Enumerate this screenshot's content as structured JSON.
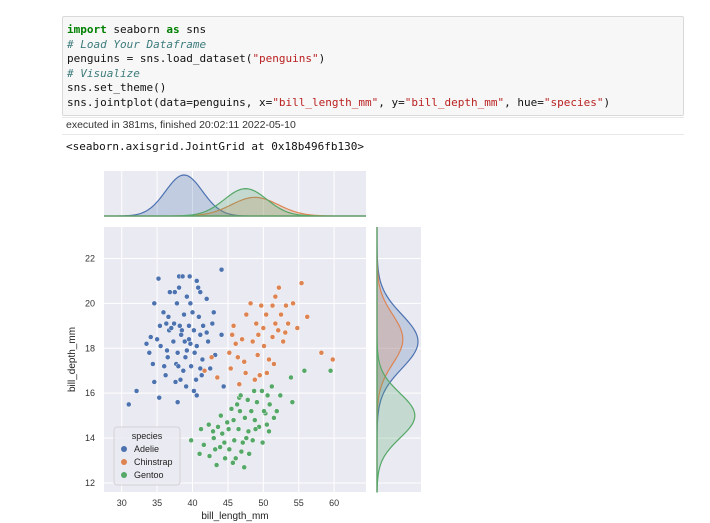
{
  "cell": {
    "lines": [
      {
        "kw": "import",
        "rest_a": " seaborn ",
        "kw2": "as",
        "rest_b": " sns"
      },
      {
        "comment": "# Load Your Dataframe"
      },
      {
        "pre": "penguins = sns.load_dataset(",
        "str": "\"penguins\"",
        "post": ")"
      },
      {
        "comment": "# Visualize"
      },
      {
        "plain": "sns.set_theme()"
      },
      {
        "pre": "sns.jointplot(data=penguins, x=",
        "str1": "\"bill_length_mm\"",
        "mid": ", y=",
        "str2": "\"bill_depth_mm\"",
        "mid2": ", hue=",
        "str3": "\"species\"",
        "post": ")"
      }
    ],
    "exec_info": "executed in 381ms, finished 20:02:11 2022-05-10",
    "output_repr": "<seaborn.axisgrid.JointGrid at 0x18b496fb130>"
  },
  "chart_data": {
    "type": "scatter",
    "xlabel": "bill_length_mm",
    "ylabel": "bill_depth_mm",
    "xlim": [
      27.5,
      64.5
    ],
    "ylim": [
      11.6,
      23.4
    ],
    "xticks": [
      30,
      35,
      40,
      45,
      50,
      55,
      60
    ],
    "yticks": [
      12,
      14,
      16,
      18,
      20,
      22
    ],
    "legend_title": "species",
    "legend_position": "lower-left",
    "grid": true,
    "series": [
      {
        "name": "Adelie",
        "color": "#4c72b0",
        "kde_x": {
          "mean": 38.8,
          "sd": 2.6
        },
        "kde_y": {
          "mean": 18.3,
          "sd": 1.2
        },
        "points": [
          [
            38.1,
            21.2
          ],
          [
            35.2,
            21.1
          ],
          [
            38.6,
            21.2
          ],
          [
            39.6,
            21.2
          ],
          [
            40.6,
            21.0
          ],
          [
            44.1,
            21.5
          ],
          [
            41.1,
            20.5
          ],
          [
            37.5,
            20.5
          ],
          [
            38.1,
            20.7
          ],
          [
            36.8,
            20.5
          ],
          [
            39.2,
            20.3
          ],
          [
            39.7,
            20.0
          ],
          [
            40.8,
            20.7
          ],
          [
            42.0,
            20.2
          ],
          [
            37.8,
            20.0
          ],
          [
            34.6,
            20.0
          ],
          [
            35.9,
            19.6
          ],
          [
            38.8,
            19.5
          ],
          [
            36.6,
            19.4
          ],
          [
            40.9,
            19.4
          ],
          [
            37.4,
            19.1
          ],
          [
            42.8,
            19.1
          ],
          [
            35.4,
            19.0
          ],
          [
            38.2,
            19.0
          ],
          [
            39.5,
            19.0
          ],
          [
            41.5,
            19.0
          ],
          [
            36.7,
            18.8
          ],
          [
            34.1,
            18.5
          ],
          [
            38.4,
            18.6
          ],
          [
            40.2,
            18.8
          ],
          [
            41.1,
            18.6
          ],
          [
            44.1,
            18.6
          ],
          [
            33.5,
            18.2
          ],
          [
            35.5,
            18.1
          ],
          [
            37.3,
            18.3
          ],
          [
            38.9,
            18.3
          ],
          [
            39.7,
            18.2
          ],
          [
            40.6,
            18.1
          ],
          [
            42.2,
            18.3
          ],
          [
            36.4,
            17.9
          ],
          [
            37.9,
            17.8
          ],
          [
            39.0,
            17.6
          ],
          [
            40.3,
            17.8
          ],
          [
            41.4,
            17.5
          ],
          [
            43.2,
            17.7
          ],
          [
            34.4,
            17.3
          ],
          [
            36.0,
            17.2
          ],
          [
            37.7,
            17.3
          ],
          [
            38.7,
            17.0
          ],
          [
            39.8,
            17.2
          ],
          [
            41.1,
            17.1
          ],
          [
            42.5,
            17.1
          ],
          [
            36.2,
            16.8
          ],
          [
            38.3,
            16.6
          ],
          [
            40.5,
            16.6
          ],
          [
            41.3,
            16.8
          ],
          [
            32.1,
            16.1
          ],
          [
            34.6,
            16.5
          ],
          [
            37.6,
            16.5
          ],
          [
            39.1,
            16.3
          ],
          [
            40.2,
            16.1
          ],
          [
            44.4,
            16.3
          ],
          [
            31.0,
            15.5
          ],
          [
            35.3,
            15.8
          ],
          [
            37.9,
            15.6
          ],
          [
            40.6,
            15.9
          ],
          [
            36.5,
            17.6
          ],
          [
            38.5,
            18.8
          ],
          [
            39.2,
            17.9
          ],
          [
            35.0,
            18.4
          ],
          [
            37.0,
            18.9
          ],
          [
            40.0,
            19.6
          ],
          [
            42.0,
            18.7
          ],
          [
            36.3,
            19.1
          ],
          [
            33.9,
            17.8
          ],
          [
            43.0,
            19.6
          ],
          [
            38.0,
            17.2
          ],
          [
            39.5,
            18.4
          ]
        ]
      },
      {
        "name": "Chinstrap",
        "color": "#dd8452",
        "kde_x": {
          "mean": 48.8,
          "sd": 3.3
        },
        "kde_y": {
          "mean": 18.4,
          "sd": 1.1
        },
        "points": [
          [
            52.2,
            20.7
          ],
          [
            55.4,
            20.9
          ],
          [
            51.7,
            20.3
          ],
          [
            48.2,
            20.0
          ],
          [
            49.7,
            19.9
          ],
          [
            51.3,
            19.9
          ],
          [
            53.2,
            19.9
          ],
          [
            54.2,
            20.0
          ],
          [
            47.6,
            19.5
          ],
          [
            50.4,
            19.5
          ],
          [
            52.5,
            19.5
          ],
          [
            56.2,
            19.4
          ],
          [
            49.0,
            19.1
          ],
          [
            51.7,
            19.1
          ],
          [
            53.5,
            19.1
          ],
          [
            45.8,
            19.0
          ],
          [
            50.0,
            18.9
          ],
          [
            52.1,
            18.8
          ],
          [
            54.8,
            18.9
          ],
          [
            49.3,
            18.6
          ],
          [
            51.3,
            18.5
          ],
          [
            53.1,
            18.7
          ],
          [
            46.1,
            18.2
          ],
          [
            48.5,
            18.3
          ],
          [
            50.1,
            18.1
          ],
          [
            52.8,
            18.3
          ],
          [
            58.2,
            17.8
          ],
          [
            59.8,
            17.5
          ],
          [
            45.2,
            17.8
          ],
          [
            46.4,
            17.6
          ],
          [
            47.3,
            17.4
          ],
          [
            49.2,
            17.7
          ],
          [
            50.8,
            17.5
          ],
          [
            51.5,
            17.3
          ],
          [
            42.7,
            17.6
          ],
          [
            45.4,
            17.1
          ],
          [
            47.5,
            16.9
          ],
          [
            49.5,
            16.8
          ],
          [
            50.5,
            16.9
          ],
          [
            43.5,
            16.7
          ],
          [
            46.6,
            16.4
          ],
          [
            48.8,
            16.6
          ],
          [
            41.7,
            17.0
          ],
          [
            45.6,
            18.6
          ],
          [
            47.0,
            18.4
          ]
        ]
      },
      {
        "name": "Gentoo",
        "color": "#55a868",
        "kde_x": {
          "mean": 47.5,
          "sd": 3.0
        },
        "kde_y": {
          "mean": 15.0,
          "sd": 1.0
        },
        "points": [
          [
            59.5,
            17.0
          ],
          [
            55.8,
            17.0
          ],
          [
            53.9,
            16.7
          ],
          [
            51.2,
            16.3
          ],
          [
            49.8,
            16.1
          ],
          [
            48.7,
            16.1
          ],
          [
            50.6,
            15.9
          ],
          [
            52.4,
            15.9
          ],
          [
            46.6,
            15.8
          ],
          [
            47.8,
            15.7
          ],
          [
            49.1,
            15.6
          ],
          [
            50.9,
            15.5
          ],
          [
            54.1,
            15.6
          ],
          [
            45.5,
            15.3
          ],
          [
            46.7,
            15.2
          ],
          [
            48.3,
            15.2
          ],
          [
            50.3,
            15.1
          ],
          [
            51.9,
            15.2
          ],
          [
            44.0,
            15.0
          ],
          [
            45.8,
            14.8
          ],
          [
            47.4,
            14.9
          ],
          [
            48.8,
            14.8
          ],
          [
            50.5,
            14.6
          ],
          [
            42.3,
            14.6
          ],
          [
            43.6,
            14.5
          ],
          [
            45.1,
            14.4
          ],
          [
            46.5,
            14.4
          ],
          [
            47.9,
            14.3
          ],
          [
            49.4,
            14.5
          ],
          [
            50.8,
            14.3
          ],
          [
            41.2,
            14.4
          ],
          [
            43.0,
            14.0
          ],
          [
            44.2,
            14.2
          ],
          [
            45.9,
            13.9
          ],
          [
            47.1,
            13.8
          ],
          [
            48.5,
            13.9
          ],
          [
            49.9,
            13.8
          ],
          [
            39.8,
            13.9
          ],
          [
            41.6,
            13.7
          ],
          [
            43.9,
            13.6
          ],
          [
            45.2,
            13.5
          ],
          [
            46.9,
            13.4
          ],
          [
            48.0,
            13.3
          ],
          [
            41.0,
            13.3
          ],
          [
            42.4,
            13.2
          ],
          [
            44.6,
            13.1
          ],
          [
            46.1,
            13.1
          ],
          [
            43.4,
            12.8
          ],
          [
            45.7,
            12.9
          ],
          [
            47.3,
            12.7
          ],
          [
            43.2,
            13.5
          ],
          [
            44.9,
            14.7
          ],
          [
            46.3,
            15.5
          ],
          [
            47.6,
            14.0
          ],
          [
            48.9,
            14.4
          ],
          [
            50.1,
            15.2
          ],
          [
            51.5,
            14.9
          ],
          [
            46.8,
            15.9
          ],
          [
            44.5,
            13.8
          ],
          [
            42.9,
            14.3
          ]
        ]
      }
    ]
  }
}
